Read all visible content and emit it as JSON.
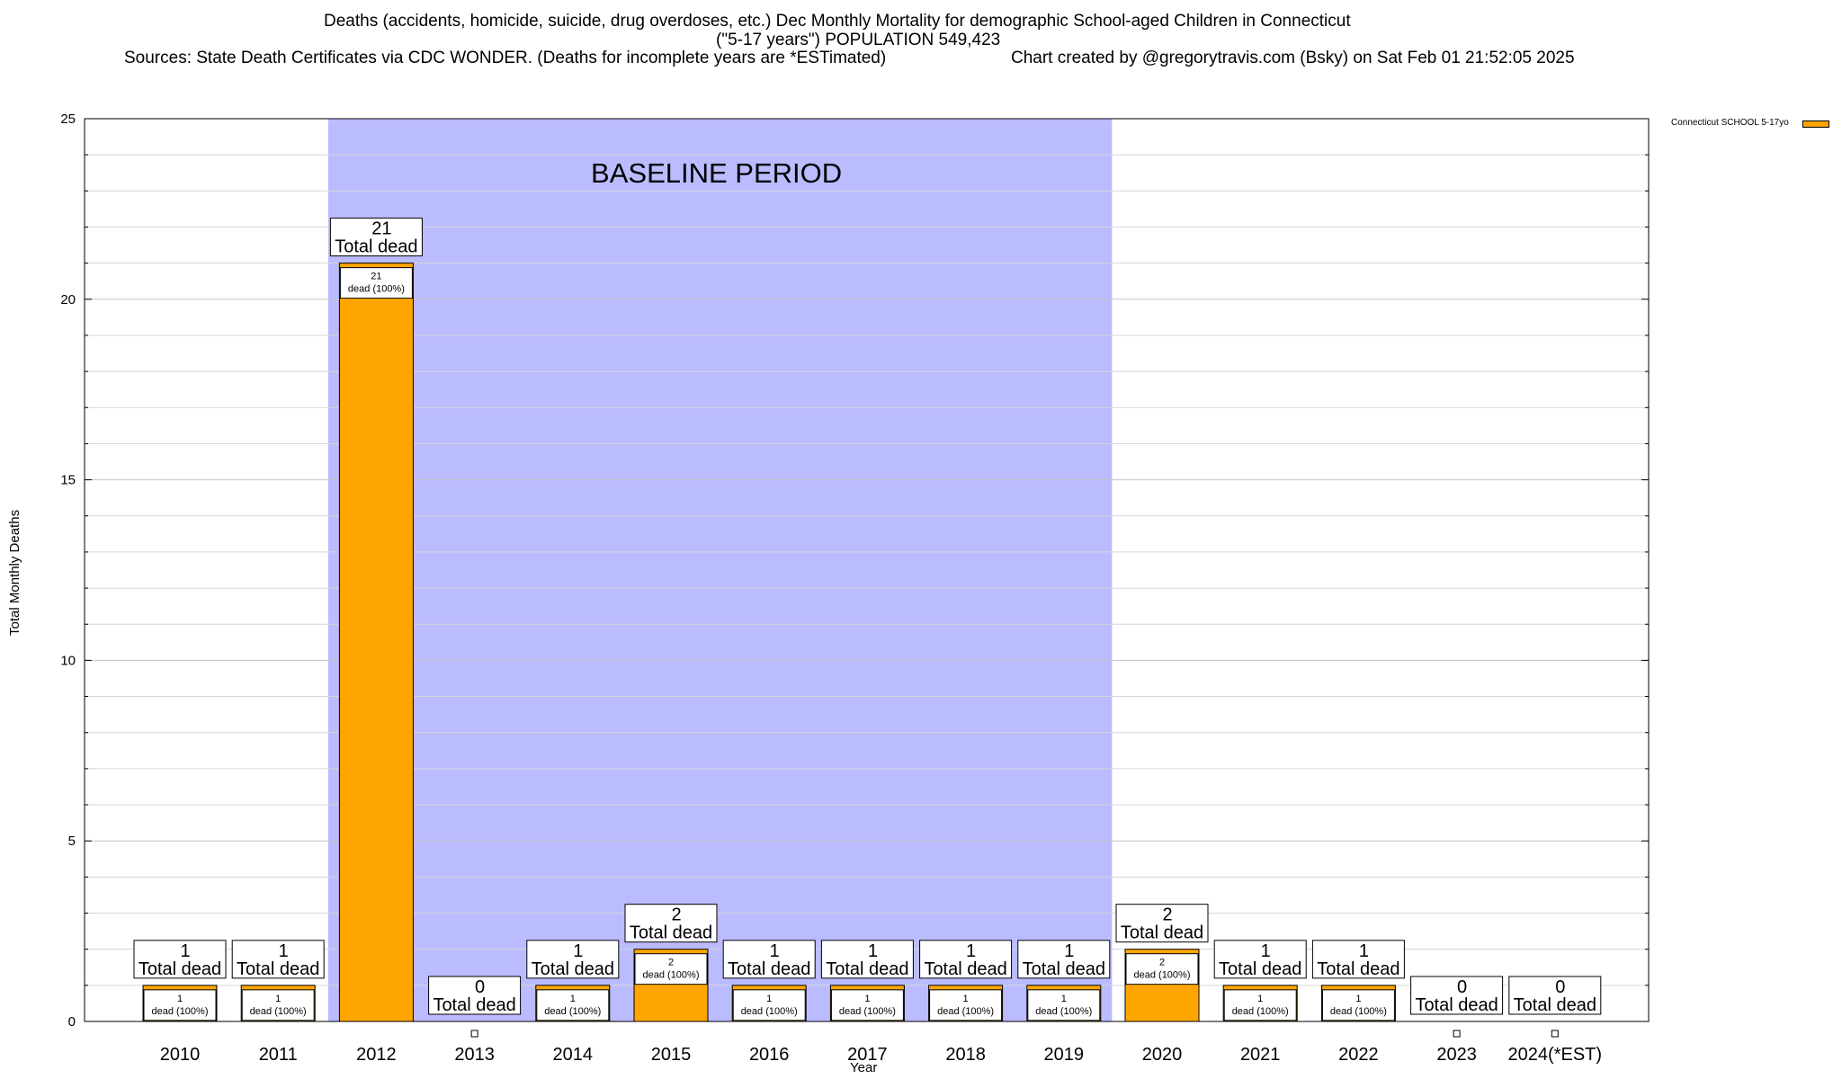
{
  "chart_data": {
    "type": "bar",
    "title": "Deaths (accidents, homicide, suicide, drug overdoses, etc.) Dec Monthly Mortality for demographic School-aged Children in Connecticut",
    "subtitle": "(\"5-17 years\") POPULATION 549,423",
    "sources": "Sources: State Death Certificates via CDC WONDER. (Deaths for incomplete years are *ESTimated)",
    "credit": "Chart created by @gregorytravis.com (Bsky) on Sat Feb 01 21:52:05 2025",
    "xlabel": "Year",
    "ylabel": "Total Monthly Deaths",
    "ylim": [
      0,
      25
    ],
    "yticks": [
      0,
      5,
      10,
      15,
      20,
      25
    ],
    "grid": true,
    "legend_position": "top-right",
    "categories": [
      "2010",
      "2011",
      "2012",
      "2013",
      "2014",
      "2015",
      "2016",
      "2017",
      "2018",
      "2019",
      "2020",
      "2021",
      "2022",
      "2023",
      "2024(*EST)"
    ],
    "series": [
      {
        "name": "Connecticut SCHOOL 5-17yo",
        "color": "#ffa500",
        "values": [
          1,
          1,
          21,
          0,
          1,
          2,
          1,
          1,
          1,
          1,
          2,
          1,
          1,
          0,
          0
        ]
      }
    ],
    "total_label_text": "Total dead",
    "segment_label_text": "dead (100%)",
    "baseline": {
      "label": "BASELINE PERIOD",
      "start": "2012",
      "end": "2019",
      "color": "#bbbbff"
    }
  }
}
